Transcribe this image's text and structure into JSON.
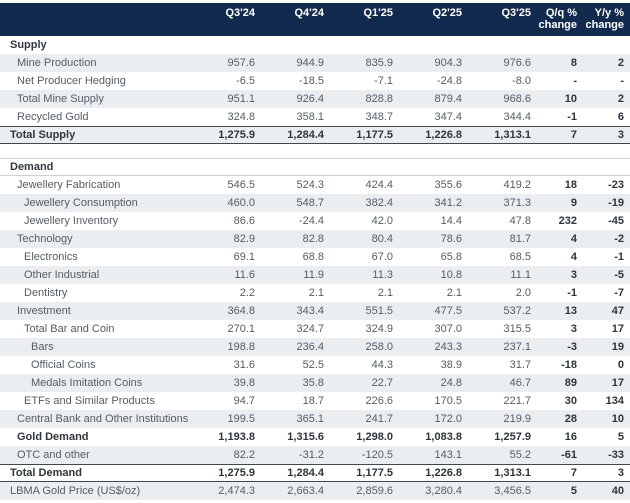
{
  "colors": {
    "header_bg": "#122A4D",
    "header_text": "#FFFFFF",
    "row_stripe": "#EBEEF1",
    "text": "#545C64",
    "text_bold": "#2E353B",
    "border_dark": "#42474C",
    "border_light": "#CDD1D5"
  },
  "header": {
    "quarters": [
      "Q3'24",
      "Q4'24",
      "Q1'25",
      "Q2'25",
      "Q3'25"
    ],
    "qoq": {
      "line1": "Q/q %",
      "line2": "change"
    },
    "yoy": {
      "line1": "Y/y %",
      "line2": "change"
    }
  },
  "rows": [
    {
      "label": "Supply",
      "indent": 0,
      "type": "section",
      "shade": false,
      "border": "none",
      "values": [
        "",
        "",
        "",
        "",
        ""
      ],
      "qoq": "",
      "yoy": ""
    },
    {
      "label": "Mine Production",
      "indent": 1,
      "type": "data",
      "shade": true,
      "border": "none",
      "values": [
        "957.6",
        "944.9",
        "835.9",
        "904.3",
        "976.6"
      ],
      "qoq": "8",
      "yoy": "2"
    },
    {
      "label": "Net Producer Hedging",
      "indent": 1,
      "type": "data",
      "shade": false,
      "border": "none",
      "values": [
        "-6.5",
        "-18.5",
        "-7.1",
        "-24.8",
        "-8.0"
      ],
      "qoq": "-",
      "yoy": "-"
    },
    {
      "label": "Total Mine Supply",
      "indent": 1,
      "type": "data",
      "shade": true,
      "border": "none",
      "values": [
        "951.1",
        "926.4",
        "828.8",
        "879.4",
        "968.6"
      ],
      "qoq": "10",
      "yoy": "2"
    },
    {
      "label": "Recycled Gold",
      "indent": 1,
      "type": "data",
      "shade": false,
      "border": "none",
      "values": [
        "324.8",
        "358.1",
        "348.7",
        "347.4",
        "344.4"
      ],
      "qoq": "-1",
      "yoy": "6"
    },
    {
      "label": "Total Supply",
      "indent": 0,
      "type": "total",
      "shade": true,
      "border": "dark",
      "values": [
        "1,275.9",
        "1,284.4",
        "1,177.5",
        "1,226.8",
        "1,313.1"
      ],
      "qoq": "7",
      "yoy": "3"
    },
    {
      "label": "Demand",
      "indent": 0,
      "type": "section",
      "shade": false,
      "border": "light",
      "gap_before": true,
      "values": [
        "",
        "",
        "",
        "",
        ""
      ],
      "qoq": "",
      "yoy": ""
    },
    {
      "label": "Jewellery Fabrication",
      "indent": 1,
      "type": "data",
      "shade": false,
      "border": "none",
      "values": [
        "546.5",
        "524.3",
        "424.4",
        "355.6",
        "419.2"
      ],
      "qoq": "18",
      "yoy": "-23"
    },
    {
      "label": "Jewellery Consumption",
      "indent": 2,
      "type": "data",
      "shade": true,
      "border": "none",
      "values": [
        "460.0",
        "548.7",
        "382.4",
        "341.2",
        "371.3"
      ],
      "qoq": "9",
      "yoy": "-19"
    },
    {
      "label": "Jewellery Inventory",
      "indent": 2,
      "type": "data",
      "shade": false,
      "border": "none",
      "values": [
        "86.6",
        "-24.4",
        "42.0",
        "14.4",
        "47.8"
      ],
      "qoq": "232",
      "yoy": "-45"
    },
    {
      "label": "Technology",
      "indent": 1,
      "type": "data",
      "shade": true,
      "border": "none",
      "values": [
        "82.9",
        "82.8",
        "80.4",
        "78.6",
        "81.7"
      ],
      "qoq": "4",
      "yoy": "-2"
    },
    {
      "label": "Electronics",
      "indent": 2,
      "type": "data",
      "shade": false,
      "border": "none",
      "values": [
        "69.1",
        "68.8",
        "67.0",
        "65.8",
        "68.5"
      ],
      "qoq": "4",
      "yoy": "-1"
    },
    {
      "label": "Other Industrial",
      "indent": 2,
      "type": "data",
      "shade": true,
      "border": "none",
      "values": [
        "11.6",
        "11.9",
        "11.3",
        "10.8",
        "11.1"
      ],
      "qoq": "3",
      "yoy": "-5"
    },
    {
      "label": "Dentistry",
      "indent": 2,
      "type": "data",
      "shade": false,
      "border": "none",
      "values": [
        "2.2",
        "2.1",
        "2.1",
        "2.1",
        "2.0"
      ],
      "qoq": "-1",
      "yoy": "-7"
    },
    {
      "label": "Investment",
      "indent": 1,
      "type": "data",
      "shade": true,
      "border": "none",
      "values": [
        "364.8",
        "343.4",
        "551.5",
        "477.5",
        "537.2"
      ],
      "qoq": "13",
      "yoy": "47"
    },
    {
      "label": "Total Bar and Coin",
      "indent": 2,
      "type": "data",
      "shade": false,
      "border": "none",
      "values": [
        "270.1",
        "324.7",
        "324.9",
        "307.0",
        "315.5"
      ],
      "qoq": "3",
      "yoy": "17"
    },
    {
      "label": "Bars",
      "indent": 3,
      "type": "data",
      "shade": true,
      "border": "none",
      "values": [
        "198.8",
        "236.4",
        "258.0",
        "243.3",
        "237.1"
      ],
      "qoq": "-3",
      "yoy": "19"
    },
    {
      "label": "Official Coins",
      "indent": 3,
      "type": "data",
      "shade": false,
      "border": "none",
      "values": [
        "31.6",
        "52.5",
        "44.3",
        "38.9",
        "31.7"
      ],
      "qoq": "-18",
      "yoy": "0"
    },
    {
      "label": "Medals Imitation Coins",
      "indent": 3,
      "type": "data",
      "shade": true,
      "border": "none",
      "values": [
        "39.8",
        "35.8",
        "22.7",
        "24.8",
        "46.7"
      ],
      "qoq": "89",
      "yoy": "17"
    },
    {
      "label": "ETFs and Similar Products",
      "indent": 2,
      "type": "data",
      "shade": false,
      "border": "none",
      "values": [
        "94.7",
        "18.7",
        "226.6",
        "170.5",
        "221.7"
      ],
      "qoq": "30",
      "yoy": "134"
    },
    {
      "label": "Central Bank and Other Institutions",
      "indent": 1,
      "type": "data",
      "shade": true,
      "border": "none",
      "values": [
        "199.5",
        "365.1",
        "241.7",
        "172.0",
        "219.9"
      ],
      "qoq": "28",
      "yoy": "10"
    },
    {
      "label": "Gold Demand",
      "indent": 1,
      "type": "total",
      "shade": false,
      "border": "none",
      "values": [
        "1,193.8",
        "1,315.6",
        "1,298.0",
        "1,083.8",
        "1,257.9"
      ],
      "qoq": "16",
      "yoy": "5"
    },
    {
      "label": "OTC and other",
      "indent": 1,
      "type": "data",
      "shade": true,
      "border": "none",
      "values": [
        "82.2",
        "-31.2",
        "-120.5",
        "143.1",
        "55.2"
      ],
      "qoq": "-61",
      "yoy": "-33"
    },
    {
      "label": "Total Demand",
      "indent": 0,
      "type": "total",
      "shade": false,
      "border": "dark",
      "values": [
        "1,275.9",
        "1,284.4",
        "1,177.5",
        "1,226.8",
        "1,313.1"
      ],
      "qoq": "7",
      "yoy": "3"
    },
    {
      "label": "LBMA Gold Price (US$/oz)",
      "indent": 0,
      "type": "data",
      "shade": true,
      "border": "none",
      "values": [
        "2,474.3",
        "2,663.4",
        "2,859.6",
        "3,280.4",
        "3,456.5"
      ],
      "qoq": "5",
      "yoy": "40"
    }
  ]
}
